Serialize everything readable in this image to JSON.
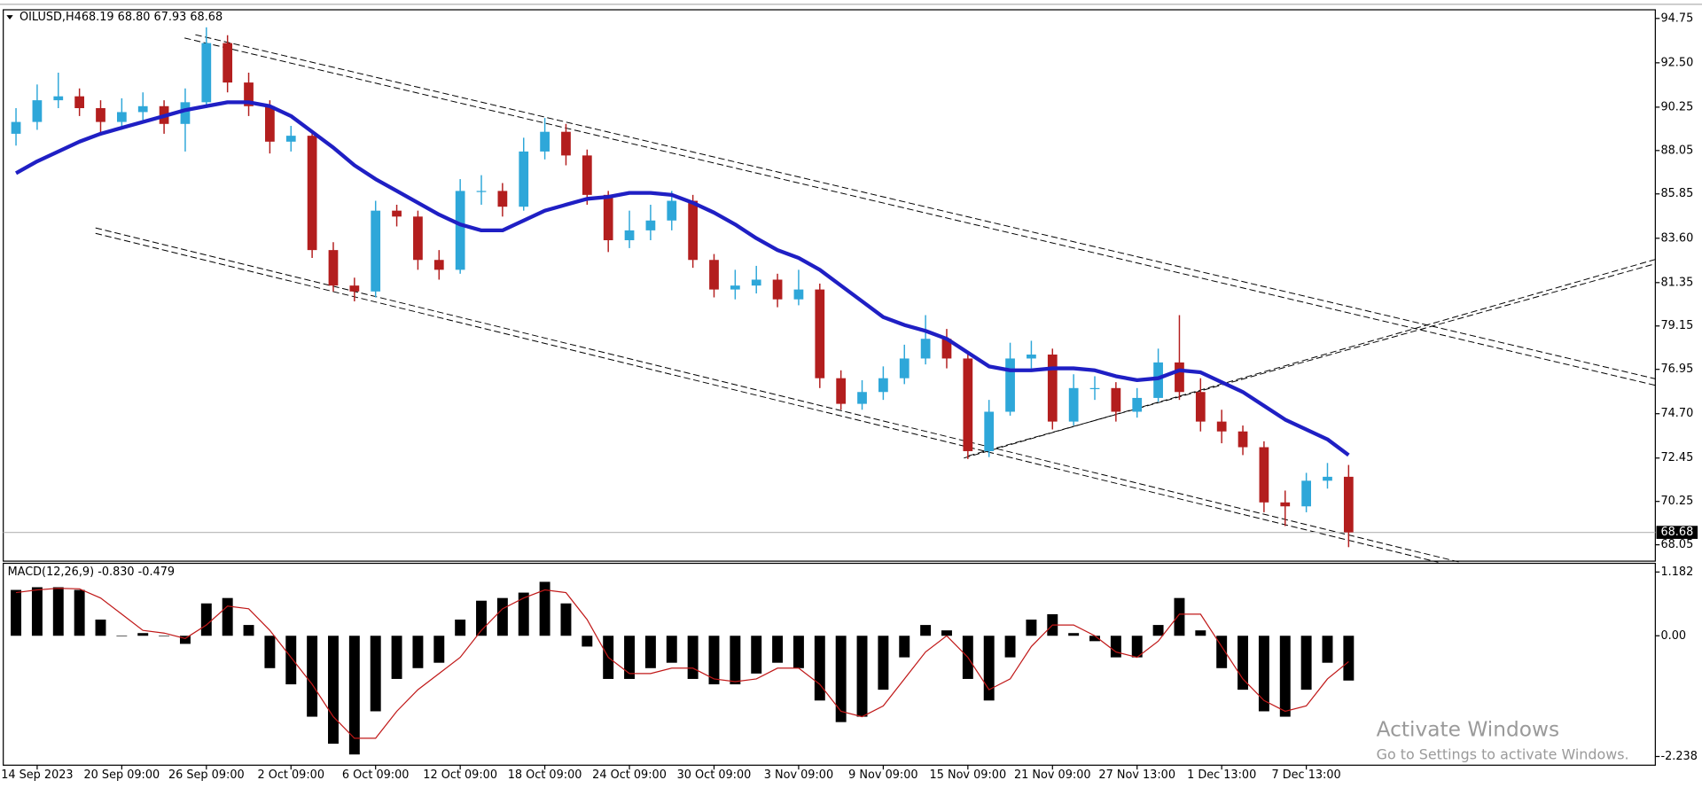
{
  "chart_data": [
    {
      "type": "candlestick",
      "title": "OILUSD,H4",
      "header_values": "68.19 68.80 67.93 68.68",
      "up_color": "#2ea7d9",
      "down_color": "#b31e1e",
      "open": [
        88.9,
        89.5,
        90.6,
        90.8,
        90.2,
        89.5,
        90.0,
        90.3,
        89.4,
        90.5,
        93.5,
        91.5,
        90.3,
        88.5,
        88.8,
        83.0,
        81.2,
        80.9,
        85.0,
        84.7,
        82.5,
        82.0,
        86.0,
        86.0,
        85.2,
        88.0,
        89.0,
        87.8,
        85.8,
        83.5,
        84.0,
        84.5,
        85.5,
        82.5,
        81.0,
        81.2,
        81.5,
        80.5,
        81.0,
        76.5,
        75.2,
        75.8,
        76.5,
        77.5,
        78.5,
        77.5,
        72.8,
        74.8,
        77.5,
        77.7,
        74.3,
        76.0,
        76.0,
        74.8,
        75.5,
        77.3,
        75.8,
        74.3,
        73.8,
        73.0,
        70.2,
        70.0,
        71.3,
        71.5
      ],
      "high": [
        90.2,
        91.4,
        92.0,
        91.2,
        90.6,
        90.7,
        91.0,
        90.6,
        91.2,
        94.3,
        93.9,
        92.0,
        90.6,
        89.3,
        89.0,
        83.4,
        81.6,
        85.5,
        85.3,
        85.0,
        83.0,
        86.6,
        86.8,
        86.4,
        88.7,
        89.7,
        89.4,
        88.1,
        86.0,
        85.0,
        85.3,
        86.0,
        85.8,
        82.8,
        82.0,
        82.2,
        81.8,
        82.0,
        81.3,
        76.9,
        76.4,
        77.1,
        78.2,
        79.7,
        79.0,
        77.8,
        75.4,
        78.3,
        78.4,
        78.0,
        76.7,
        76.6,
        76.3,
        76.0,
        78.0,
        79.7,
        76.5,
        74.9,
        74.1,
        73.3,
        70.8,
        71.7,
        72.2,
        72.1
      ],
      "low": [
        88.3,
        89.1,
        90.2,
        89.8,
        88.8,
        89.1,
        89.6,
        88.9,
        88.0,
        90.2,
        91.0,
        89.8,
        87.9,
        88.0,
        82.6,
        80.9,
        80.4,
        80.6,
        84.2,
        82.0,
        81.5,
        81.8,
        85.3,
        84.7,
        85.0,
        87.6,
        87.3,
        85.3,
        82.9,
        83.1,
        83.5,
        84.0,
        82.1,
        80.6,
        80.5,
        80.8,
        80.1,
        80.2,
        76.0,
        74.9,
        74.9,
        75.4,
        76.2,
        77.2,
        77.0,
        72.4,
        72.5,
        74.6,
        77.0,
        73.9,
        74.1,
        75.4,
        74.3,
        74.5,
        75.3,
        75.4,
        73.8,
        73.2,
        72.6,
        69.7,
        69.0,
        69.7,
        70.9,
        67.93
      ],
      "close": [
        89.5,
        90.6,
        90.8,
        90.2,
        89.5,
        90.0,
        90.3,
        89.4,
        90.5,
        93.5,
        91.5,
        90.3,
        88.5,
        88.8,
        83.0,
        81.2,
        80.9,
        85.0,
        84.7,
        82.5,
        82.0,
        86.0,
        86.0,
        85.2,
        88.0,
        89.0,
        87.8,
        85.8,
        83.5,
        84.0,
        84.5,
        85.5,
        82.5,
        81.0,
        81.2,
        81.5,
        80.5,
        81.0,
        76.5,
        75.2,
        75.8,
        76.5,
        77.5,
        78.5,
        77.5,
        72.8,
        74.8,
        77.5,
        77.7,
        74.3,
        76.0,
        76.0,
        74.8,
        75.5,
        77.3,
        75.8,
        74.3,
        73.8,
        73.0,
        70.2,
        70.0,
        71.3,
        71.5,
        68.68
      ],
      "ma": {
        "color": "#1f1fc4",
        "values": [
          86.9,
          87.5,
          88.0,
          88.5,
          88.9,
          89.2,
          89.5,
          89.8,
          90.1,
          90.3,
          90.5,
          90.5,
          90.3,
          89.8,
          89.0,
          88.2,
          87.3,
          86.6,
          86.0,
          85.4,
          84.8,
          84.3,
          84.0,
          84.0,
          84.5,
          85.0,
          85.3,
          85.6,
          85.7,
          85.9,
          85.9,
          85.8,
          85.4,
          84.9,
          84.3,
          83.6,
          83.0,
          82.6,
          82.0,
          81.2,
          80.4,
          79.6,
          79.2,
          78.9,
          78.5,
          77.8,
          77.1,
          76.9,
          76.9,
          77.0,
          77.0,
          76.9,
          76.6,
          76.4,
          76.5,
          76.9,
          76.8,
          76.3,
          75.8,
          75.1,
          74.4,
          73.9,
          73.4,
          72.6
        ]
      },
      "current_price": 68.68,
      "xlim": [
        -0.5,
        77.5
      ],
      "xticks": [
        {
          "value": 1,
          "label": "14 Sep 2023"
        },
        {
          "value": 5,
          "label": "20 Sep 09:00"
        },
        {
          "value": 9,
          "label": "26 Sep 09:00"
        },
        {
          "value": 13,
          "label": "2 Oct 09:00"
        },
        {
          "value": 17,
          "label": "6 Oct 09:00"
        },
        {
          "value": 21,
          "label": "12 Oct 09:00"
        },
        {
          "value": 25,
          "label": "18 Oct 09:00"
        },
        {
          "value": 29,
          "label": "24 Oct 09:00"
        },
        {
          "value": 33,
          "label": "30 Oct 09:00"
        },
        {
          "value": 37,
          "label": "3 Nov 09:00"
        },
        {
          "value": 41,
          "label": "9 Nov 09:00"
        },
        {
          "value": 45,
          "label": "15 Nov 09:00"
        },
        {
          "value": 49,
          "label": "21 Nov 09:00"
        },
        {
          "value": 53,
          "label": "27 Nov 13:00"
        },
        {
          "value": 57,
          "label": "1 Dec 13:00"
        },
        {
          "value": 61,
          "label": "7 Dec 13:00"
        }
      ],
      "ylim": [
        67.22,
        95.19
      ],
      "yticks": [
        94.75,
        {
          "value": 92.5,
          "label": "92.50"
        },
        90.25,
        88.05,
        85.85,
        {
          "value": 83.6,
          "label": "83.60"
        },
        81.35,
        79.15,
        76.95,
        {
          "value": 74.7,
          "label": "74.70"
        },
        72.45,
        70.25,
        68.05
      ]
    },
    {
      "type": "macd",
      "title": "MACD(12,26,9) -0.830 -0.479",
      "histogram": {
        "color": "#000000",
        "values": [
          0.85,
          0.9,
          0.9,
          0.85,
          0.3,
          0.0,
          0.05,
          0.0,
          -0.15,
          0.6,
          0.7,
          0.2,
          -0.6,
          -0.9,
          -1.5,
          -2.0,
          -2.2,
          -1.4,
          -0.8,
          -0.6,
          -0.5,
          0.3,
          0.65,
          0.7,
          0.8,
          1.0,
          0.6,
          -0.2,
          -0.8,
          -0.8,
          -0.6,
          -0.5,
          -0.8,
          -0.9,
          -0.9,
          -0.7,
          -0.5,
          -0.6,
          -1.2,
          -1.6,
          -1.5,
          -1.0,
          -0.4,
          0.2,
          0.1,
          -0.8,
          -1.2,
          -0.4,
          0.3,
          0.4,
          0.05,
          -0.1,
          -0.4,
          -0.4,
          0.2,
          0.7,
          0.1,
          -0.6,
          -1.0,
          -1.4,
          -1.5,
          -1.0,
          -0.5,
          -0.83
        ]
      },
      "signal": {
        "color": "#c01818",
        "values": [
          0.8,
          0.85,
          0.88,
          0.87,
          0.7,
          0.4,
          0.1,
          0.05,
          -0.05,
          0.2,
          0.55,
          0.5,
          0.1,
          -0.4,
          -0.9,
          -1.5,
          -1.9,
          -1.9,
          -1.4,
          -1.0,
          -0.7,
          -0.4,
          0.1,
          0.5,
          0.7,
          0.85,
          0.8,
          0.3,
          -0.4,
          -0.7,
          -0.7,
          -0.6,
          -0.6,
          -0.8,
          -0.85,
          -0.8,
          -0.6,
          -0.6,
          -0.9,
          -1.4,
          -1.5,
          -1.3,
          -0.8,
          -0.3,
          0.0,
          -0.4,
          -1.0,
          -0.8,
          -0.2,
          0.2,
          0.2,
          0.0,
          -0.3,
          -0.4,
          -0.1,
          0.4,
          0.4,
          -0.2,
          -0.8,
          -1.2,
          -1.4,
          -1.3,
          -0.8,
          -0.479
        ]
      },
      "ylim": [
        -2.399,
        1.343
      ],
      "yticks": [
        1.182,
        {
          "value": 0,
          "label": "0.00"
        },
        -2.238
      ]
    }
  ],
  "watermark": {
    "title": "Activate Windows",
    "subtitle": "Go to Settings to activate Windows."
  }
}
